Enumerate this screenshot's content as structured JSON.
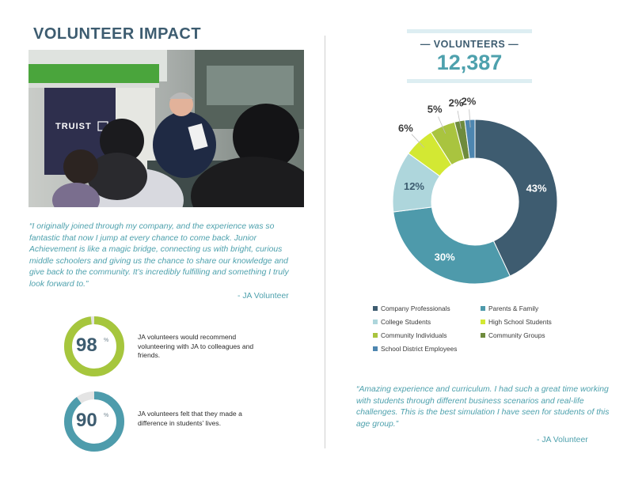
{
  "title": "VOLUNTEER IMPACT",
  "photo": {
    "sign_text": "TRUIST",
    "icon": "classroom-photo"
  },
  "quote_left": {
    "text": "“I originally joined through my company, and the experience was so fantastic that now I jump at every chance to come back. Junior Achievement is like a magic bridge, connecting us with bright, curious middle schoolers and giving us the chance to share our knowledge and give back to the community. It’s incredibly fulfilling and something I truly look forward to.”",
    "attribution": "- JA Volunteer"
  },
  "stats": [
    {
      "value": "98",
      "unit": "%",
      "fraction": 0.98,
      "color": "#a6c63d",
      "text": "JA volunteers would recommend volunteering with JA to colleagues and friends."
    },
    {
      "value": "90",
      "unit": "%",
      "fraction": 0.9,
      "color": "#4e9cac",
      "text": "JA volunteers felt that they made a difference in students’ lives."
    }
  ],
  "volunteers": {
    "label": "— VOLUNTEERS —",
    "count": "12,387"
  },
  "chart_data": {
    "type": "pie",
    "categories": [
      "Company Professionals",
      "Parents & Family",
      "College Students",
      "High School Students",
      "Community Individuals",
      "Community Groups",
      "School District Employees"
    ],
    "values": [
      43,
      30,
      12,
      6,
      5,
      2,
      2
    ],
    "labels": [
      "43%",
      "30%",
      "12%",
      "6%",
      "5%",
      "2%",
      "2%"
    ],
    "colors": [
      "#3e5c70",
      "#4e9aab",
      "#aed6dc",
      "#d3e833",
      "#a9c43f",
      "#6e8b3d",
      "#4d86b0"
    ],
    "legend": "bottom"
  },
  "quote_right": {
    "text": "“Amazing experience and curriculum. I had such a great time working with students through different business scenarios and real-life challenges. This is the best simulation I have seen for students of this age group.”",
    "attribution": "- JA Volunteer"
  }
}
